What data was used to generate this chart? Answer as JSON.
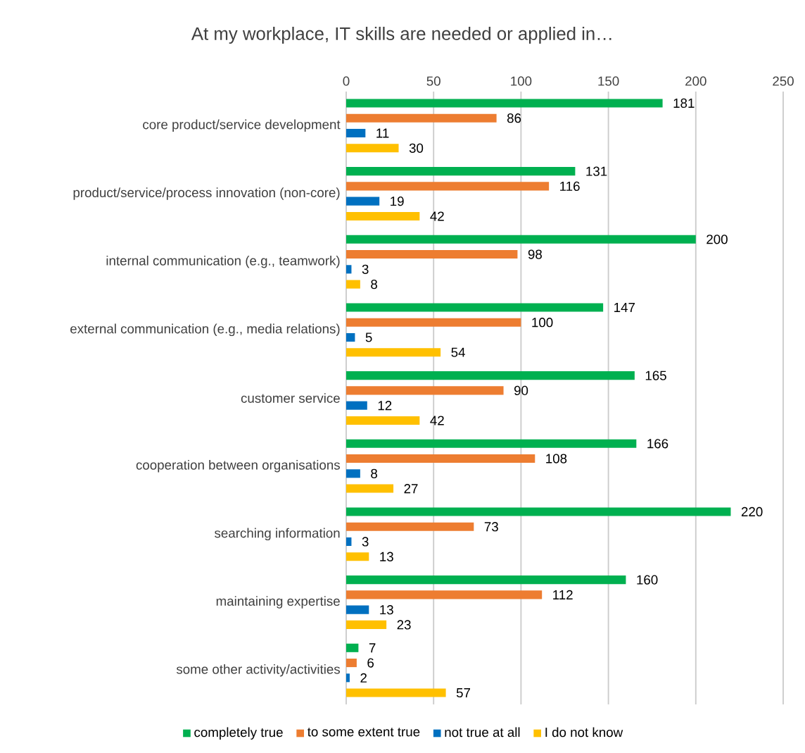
{
  "chart_data": {
    "type": "bar",
    "orientation": "horizontal",
    "title": "At my workplace, IT skills are needed or applied in…",
    "categories": [
      "core product/service development",
      "product/service/process innovation (non-core)",
      "internal communication (e.g., teamwork)",
      "external communication (e.g., media relations)",
      "customer service",
      "cooperation between organisations",
      "searching information",
      "maintaining expertise",
      "some other activity/activities"
    ],
    "series": [
      {
        "name": "completely true",
        "color": "#00b050",
        "values": [
          181,
          131,
          200,
          147,
          165,
          166,
          220,
          160,
          7
        ]
      },
      {
        "name": "to some extent true",
        "color": "#ed7d31",
        "values": [
          86,
          116,
          98,
          100,
          90,
          108,
          73,
          112,
          6
        ]
      },
      {
        "name": "not true at all",
        "color": "#0070c0",
        "values": [
          11,
          19,
          3,
          5,
          12,
          8,
          3,
          13,
          2
        ]
      },
      {
        "name": "I do not know",
        "color": "#ffc000",
        "values": [
          30,
          42,
          8,
          54,
          42,
          27,
          13,
          23,
          57
        ]
      }
    ],
    "xlim": [
      0,
      250
    ],
    "xticks": [
      0,
      50,
      100,
      150,
      200,
      250
    ],
    "grid": "x",
    "legend": "bottom",
    "data_labels": true
  }
}
